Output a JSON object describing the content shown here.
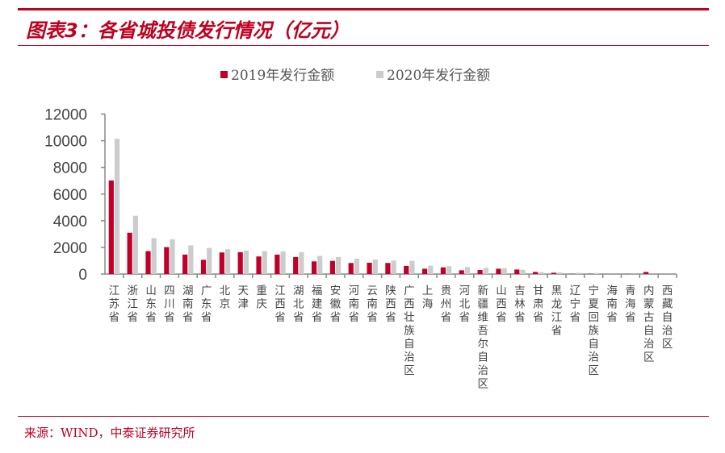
{
  "title": "图表3：各省城投债发行情况（亿元）",
  "source": "来源：WIND，中泰证券研究所",
  "chart_data": {
    "type": "bar",
    "categories": [
      "江苏省",
      "浙江省",
      "山东省",
      "四川省",
      "湖南省",
      "广东省",
      "北京",
      "天津",
      "重庆",
      "江西省",
      "湖北省",
      "福建省",
      "安徽省",
      "河南省",
      "云南省",
      "陕西省",
      "广西壮族自治区",
      "上海",
      "贵州省",
      "河北省",
      "新疆维吾尔自治区",
      "山西省",
      "吉林省",
      "甘肃省",
      "黑龙江省",
      "辽宁省",
      "宁夏回族自治区",
      "海南省",
      "青海省",
      "内蒙古自治区",
      "西藏自治区"
    ],
    "series": [
      {
        "name": "2019年发行金额",
        "color": "#c00028",
        "values": [
          7020,
          3100,
          1720,
          2020,
          1460,
          1070,
          1620,
          1640,
          1320,
          1460,
          1280,
          950,
          990,
          830,
          850,
          830,
          610,
          400,
          500,
          280,
          300,
          400,
          340,
          160,
          100,
          10,
          20,
          0,
          10,
          160,
          0
        ]
      },
      {
        "name": "2020年发行金额",
        "color": "#cccccc",
        "values": [
          10140,
          4370,
          2690,
          2610,
          2150,
          1960,
          1860,
          1760,
          1720,
          1700,
          1640,
          1360,
          1280,
          1150,
          1090,
          1010,
          990,
          630,
          590,
          530,
          470,
          440,
          320,
          140,
          120,
          100,
          80,
          0,
          10,
          0,
          0
        ]
      }
    ],
    "ylim": [
      0,
      12000
    ],
    "yticks": [
      0,
      2000,
      4000,
      6000,
      8000,
      10000,
      12000
    ],
    "legend": "top",
    "grid": false
  }
}
